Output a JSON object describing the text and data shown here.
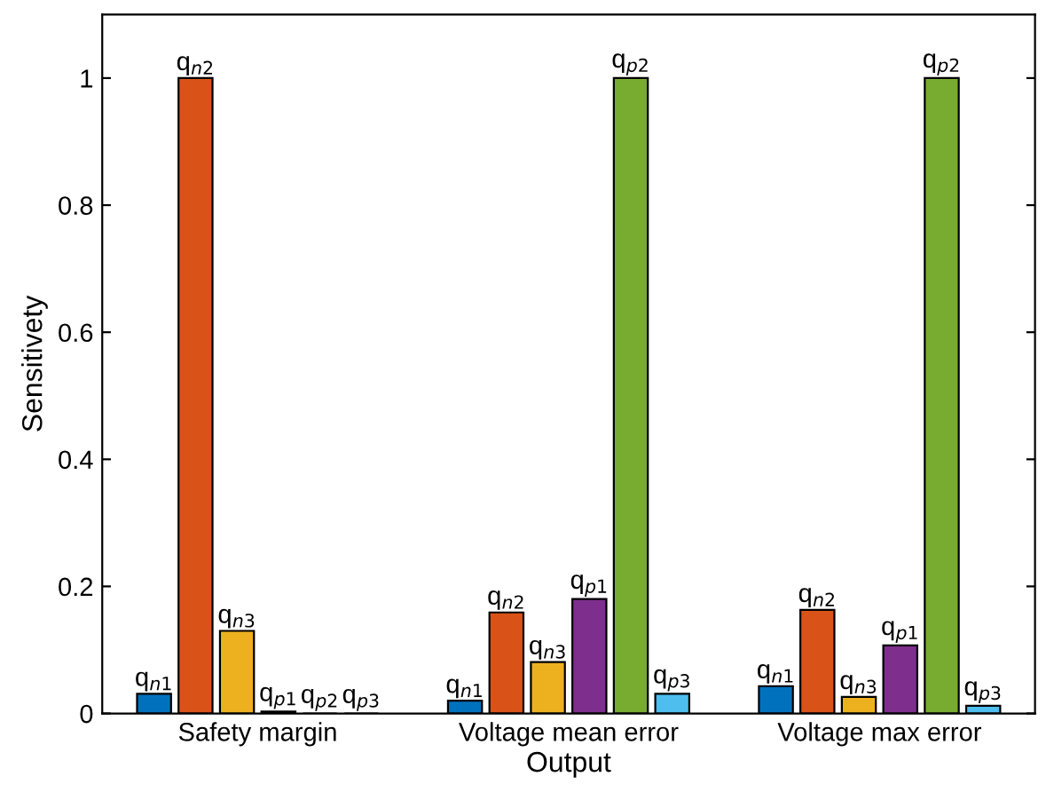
{
  "chart_data": {
    "type": "bar",
    "xlabel": "Output",
    "ylabel": "Sensitivety",
    "categories": [
      "Safety margin",
      "Voltage mean error",
      "Voltage max error"
    ],
    "series": [
      {
        "name": "q$_{n1}$",
        "color": "#0072bd",
        "values": [
          0.031,
          0.02,
          0.043
        ]
      },
      {
        "name": "q$_{n2}$",
        "color": "#d95319",
        "values": [
          1,
          0.159,
          0.163
        ]
      },
      {
        "name": "q$_{n3}$",
        "color": "#edb120",
        "values": [
          0.13,
          0.081,
          0.026
        ]
      },
      {
        "name": "q$_{p1}$",
        "color": "#7e2f8e",
        "values": [
          0.003,
          0.18,
          0.107
        ]
      },
      {
        "name": "q$_{p2}$",
        "color": "#77ac30",
        "values": [
          0,
          1,
          1
        ]
      },
      {
        "name": "q$_{p3}$",
        "color": "#4dbeee",
        "values": [
          0,
          0.031,
          0.012
        ]
      }
    ],
    "ylim": [
      0,
      1.1
    ],
    "yticks": [
      0,
      0.2,
      0.4,
      0.6,
      0.8,
      1
    ],
    "grid": false,
    "legend": false
  }
}
